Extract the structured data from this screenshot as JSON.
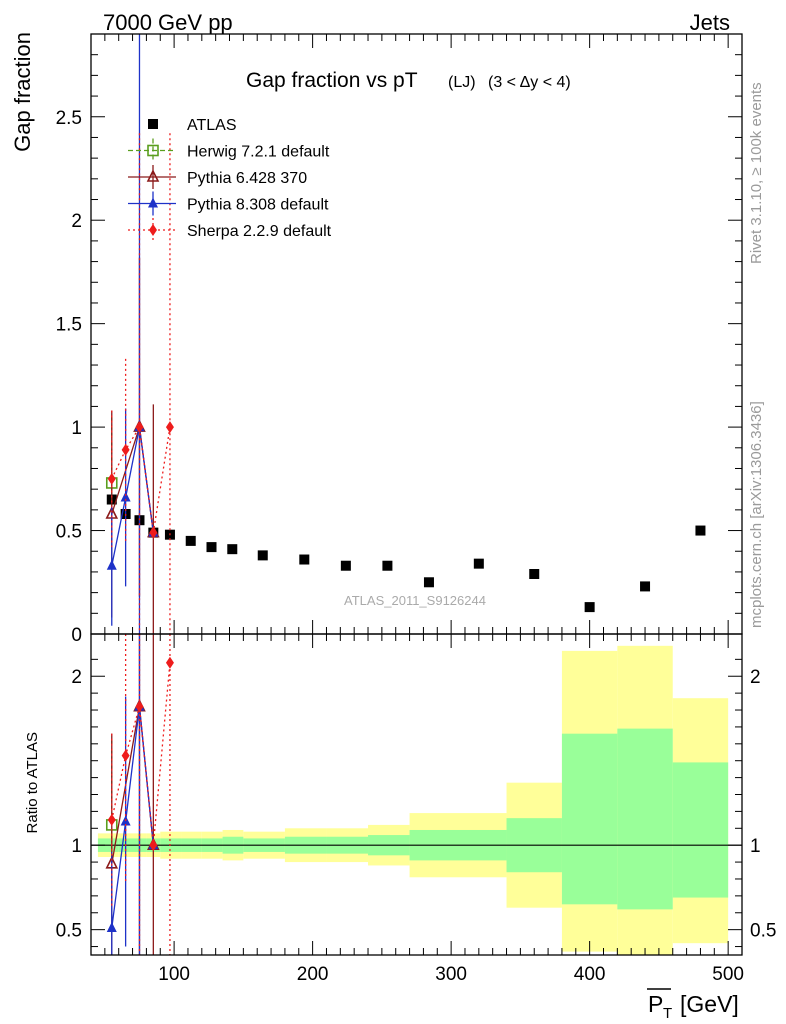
{
  "header": {
    "left": "7000 GeV pp",
    "right": "Jets"
  },
  "plot_title": {
    "main": "Gap fraction vs pT",
    "sub": "(LJ)",
    "range": "(3 < Δy < 4)"
  },
  "side_labels": {
    "rivet": "Rivet 3.1.10, ≥ 100k events",
    "mcplots": "mcplots.cern.ch [arXiv:1306.3436]"
  },
  "watermark": "ATLAS_2011_S9126244",
  "x_axis": {
    "label": "P_T [GeV]",
    "label_main": "P",
    "label_sub": "T",
    "label_unit": "[GeV]",
    "ticks": [
      "100",
      "200",
      "300",
      "400",
      "500"
    ]
  },
  "chart_data": [
    {
      "type": "scatter",
      "title": "Gap fraction vs pT (LJ) (3 < Δy < 4)",
      "ylabel": "Gap fraction",
      "xlim": [
        40,
        510
      ],
      "ylim": [
        0,
        2.9
      ],
      "y_ticks": [
        "0",
        "0.5",
        "1",
        "1.5",
        "2",
        "2.5"
      ],
      "legend_position": "top-left",
      "series": [
        {
          "name": "ATLAS",
          "key": "atlas",
          "color": "#000000",
          "marker": "square",
          "x": [
            55,
            65,
            75,
            85,
            97,
            112,
            127,
            142,
            164,
            194,
            224,
            254,
            284,
            320,
            360,
            400,
            440,
            480
          ],
          "y": [
            0.65,
            0.58,
            0.55,
            0.49,
            0.48,
            0.45,
            0.42,
            0.41,
            0.38,
            0.36,
            0.33,
            0.33,
            0.25,
            0.34,
            0.29,
            0.13,
            0.23,
            0.5
          ]
        },
        {
          "name": "Herwig 7.2.1 default",
          "key": "herwig",
          "color": "#5a9e1e",
          "marker": "open-square",
          "dash": "5,3",
          "x": [
            55
          ],
          "y": [
            0.73
          ],
          "err": [
            0.32
          ]
        },
        {
          "name": "Pythia 6.428 370",
          "key": "pythia6",
          "color": "#8b1a1a",
          "marker": "open-triangle",
          "dash": "",
          "x": [
            55,
            75,
            85
          ],
          "y": [
            0.58,
            1.0,
            0.49
          ],
          "err": [
            0.5,
            0.82,
            0.62
          ]
        },
        {
          "name": "Pythia 8.308 default",
          "key": "pythia8",
          "color": "#1e32c8",
          "marker": "triangle",
          "dash": "",
          "x": [
            55,
            65,
            75,
            85
          ],
          "y": [
            0.33,
            0.66,
            1.0,
            0.49
          ],
          "err": [
            0.29,
            0.43,
            1.95,
            0.0
          ]
        },
        {
          "name": "Sherpa 2.2.9 default",
          "key": "sherpa",
          "color": "#ee1c1c",
          "marker": "diamond",
          "dash": "2,3",
          "x": [
            55,
            65,
            75,
            85,
            97
          ],
          "y": [
            0.75,
            0.89,
            1.0,
            0.49,
            1.0
          ],
          "err": [
            0.33,
            0.44,
            1.42,
            0.0,
            1.42
          ]
        }
      ]
    },
    {
      "type": "scatter",
      "ylabel": "Ratio to ATLAS",
      "xlim": [
        40,
        510
      ],
      "ylim": [
        0.35,
        2.25
      ],
      "y_ticks": [
        "0.5",
        "1",
        "2"
      ],
      "bands": [
        {
          "x0": 45,
          "x1": 60,
          "inner": [
            0.96,
            1.04
          ],
          "outer": [
            0.93,
            1.07
          ]
        },
        {
          "x0": 60,
          "x1": 80,
          "inner": [
            0.96,
            1.04
          ],
          "outer": [
            0.93,
            1.07
          ]
        },
        {
          "x0": 80,
          "x1": 90,
          "inner": [
            0.96,
            1.04
          ],
          "outer": [
            0.93,
            1.07
          ]
        },
        {
          "x0": 90,
          "x1": 105,
          "inner": [
            0.96,
            1.04
          ],
          "outer": [
            0.92,
            1.08
          ]
        },
        {
          "x0": 105,
          "x1": 120,
          "inner": [
            0.96,
            1.04
          ],
          "outer": [
            0.92,
            1.08
          ]
        },
        {
          "x0": 120,
          "x1": 135,
          "inner": [
            0.96,
            1.04
          ],
          "outer": [
            0.92,
            1.08
          ]
        },
        {
          "x0": 135,
          "x1": 150,
          "inner": [
            0.95,
            1.05
          ],
          "outer": [
            0.91,
            1.09
          ]
        },
        {
          "x0": 150,
          "x1": 180,
          "inner": [
            0.96,
            1.04
          ],
          "outer": [
            0.92,
            1.08
          ]
        },
        {
          "x0": 180,
          "x1": 210,
          "inner": [
            0.95,
            1.05
          ],
          "outer": [
            0.9,
            1.1
          ]
        },
        {
          "x0": 210,
          "x1": 240,
          "inner": [
            0.95,
            1.05
          ],
          "outer": [
            0.9,
            1.1
          ]
        },
        {
          "x0": 240,
          "x1": 270,
          "inner": [
            0.94,
            1.06
          ],
          "outer": [
            0.88,
            1.12
          ]
        },
        {
          "x0": 270,
          "x1": 340,
          "inner": [
            0.91,
            1.09
          ],
          "outer": [
            0.81,
            1.19
          ]
        },
        {
          "x0": 340,
          "x1": 380,
          "inner": [
            0.84,
            1.16
          ],
          "outer": [
            0.63,
            1.37
          ]
        },
        {
          "x0": 380,
          "x1": 420,
          "inner": [
            0.65,
            1.66
          ],
          "outer": [
            0.37,
            2.15
          ]
        },
        {
          "x0": 420,
          "x1": 460,
          "inner": [
            0.62,
            1.69
          ],
          "outer": [
            0.34,
            2.18
          ]
        },
        {
          "x0": 460,
          "x1": 500,
          "inner": [
            0.69,
            1.49
          ],
          "outer": [
            0.42,
            1.87
          ]
        }
      ],
      "series": [
        {
          "name": "Herwig 7.2.1 default",
          "key": "herwig",
          "color": "#5a9e1e",
          "marker": "open-square",
          "dash": "5,3",
          "x": [
            55
          ],
          "y": [
            1.12
          ],
          "err": [
            0.5
          ]
        },
        {
          "name": "Pythia 6.428 370",
          "key": "pythia6",
          "color": "#8b1a1a",
          "marker": "open-triangle",
          "dash": "",
          "x": [
            55,
            75,
            85
          ],
          "y": [
            0.89,
            1.82,
            1.0
          ],
          "err": [
            0.77,
            1.5,
            1.27
          ]
        },
        {
          "name": "Pythia 8.308 default",
          "key": "pythia8",
          "color": "#1e32c8",
          "marker": "triangle",
          "dash": "",
          "x": [
            55,
            65,
            75,
            85
          ],
          "y": [
            0.51,
            1.14,
            1.82,
            1.0
          ],
          "err": [
            0.45,
            0.74,
            3.5,
            0.0
          ]
        },
        {
          "name": "Sherpa 2.2.9 default",
          "key": "sherpa",
          "color": "#ee1c1c",
          "marker": "diamond",
          "dash": "2,3",
          "x": [
            55,
            65,
            75,
            85,
            97
          ],
          "y": [
            1.15,
            1.53,
            1.82,
            1.0,
            2.08
          ],
          "err": [
            0.51,
            0.76,
            2.58,
            0.0,
            2.96
          ]
        }
      ]
    }
  ]
}
